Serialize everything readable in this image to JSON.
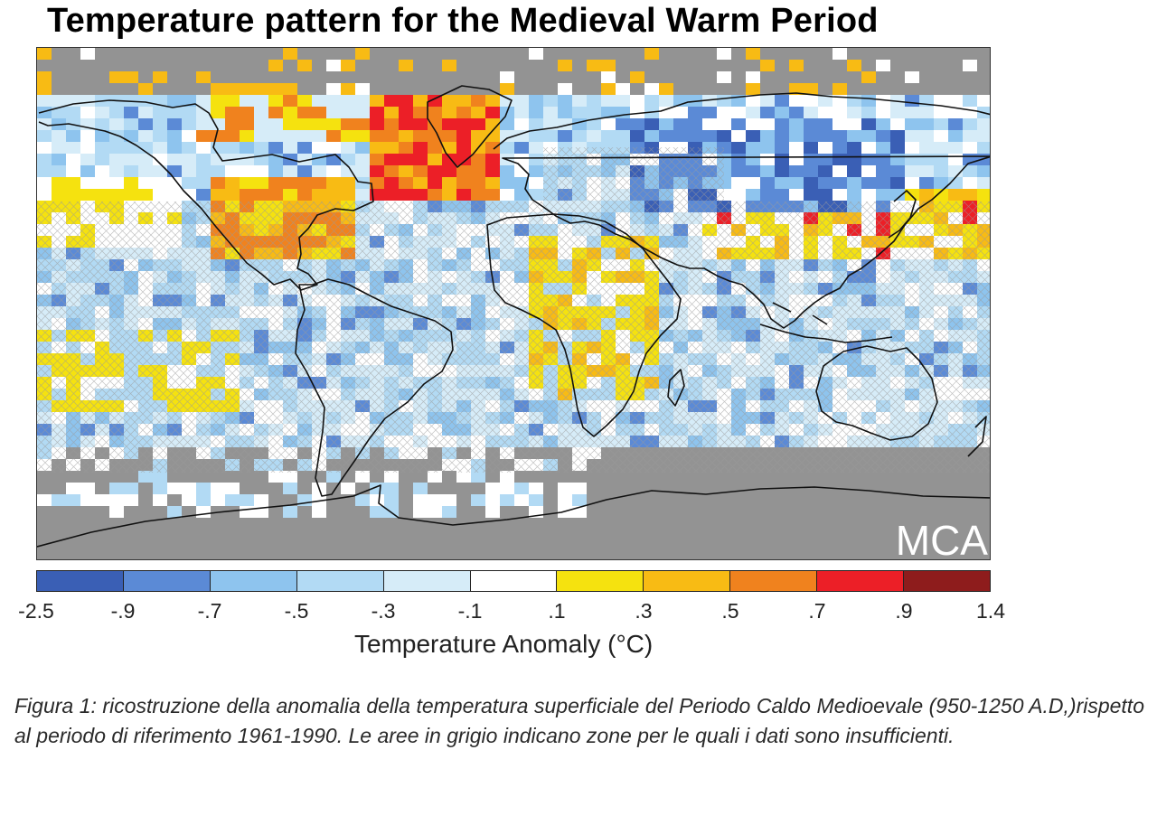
{
  "title": "Temperature pattern for the Medieval Warm Period",
  "map": {
    "watermark": "MCA",
    "background_color": "#939393",
    "hatch_color": "#9a9a9a"
  },
  "colorbar": {
    "label": "Temperature Anomaly (°C)",
    "ticks": [
      "-2.5",
      "-.9",
      "-.7",
      "-.5",
      "-.3",
      "-.1",
      ".1",
      ".3",
      ".5",
      ".7",
      ".9",
      "1.4"
    ],
    "colors": [
      "#3a5fb5",
      "#5b8ad6",
      "#8ec4ee",
      "#b2daf4",
      "#d6ecf8",
      "#ffffff",
      "#f5e20f",
      "#f8bb14",
      "#f0821e",
      "#ec1f27",
      "#8e1c1c"
    ]
  },
  "caption": "Figura 1: ricostruzione della anomalia della temperatura superficiale del Periodo Caldo Medioevale (950-1250 A.D,)rispetto al periodo di riferimento 1961-1990. Le aree in grigio indicano zone per le quali i dati sono insufficienti."
}
